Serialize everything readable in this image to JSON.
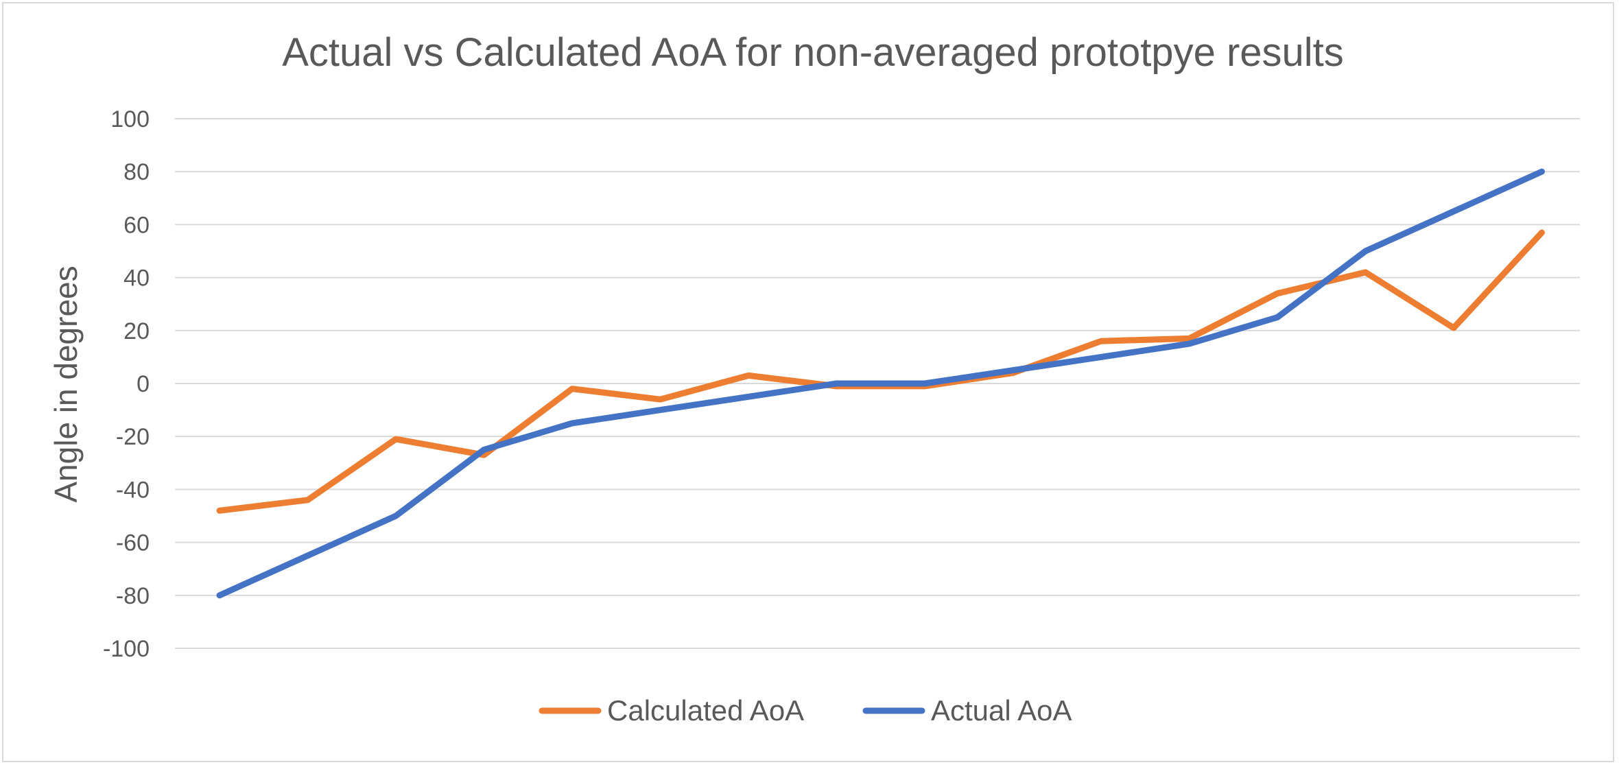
{
  "chart_data": {
    "type": "line",
    "title": "Actual vs Calculated AoA for non-averaged prototpye results",
    "xlabel": "",
    "ylabel": "Angle in degrees",
    "ylim": [
      -100,
      100
    ],
    "yticks": [
      100,
      80,
      60,
      40,
      20,
      0,
      -20,
      -40,
      -60,
      -80,
      -100
    ],
    "ytick_labels": [
      "100",
      "80",
      "60",
      "40",
      "20",
      "0",
      "-20",
      "-40",
      "-60",
      "-80",
      "-100"
    ],
    "grid": true,
    "legend_position": "bottom",
    "x": [
      1,
      2,
      3,
      4,
      5,
      6,
      7,
      8,
      9,
      10,
      11,
      12,
      13,
      14,
      15,
      16,
      17
    ],
    "series": [
      {
        "name": "Calculated AoA",
        "color": "#ed7d31",
        "values": [
          -48,
          -44,
          -21,
          -27,
          -2,
          -6,
          3,
          -1,
          -1,
          4,
          16,
          17,
          34,
          42,
          21,
          57,
          null
        ]
      },
      {
        "name": "Actual AoA",
        "color": "#4472c4",
        "values": [
          -80,
          -65,
          -50,
          -25,
          -15,
          -10,
          -5,
          0,
          0,
          5,
          10,
          15,
          25,
          50,
          65,
          80,
          null
        ]
      }
    ]
  }
}
